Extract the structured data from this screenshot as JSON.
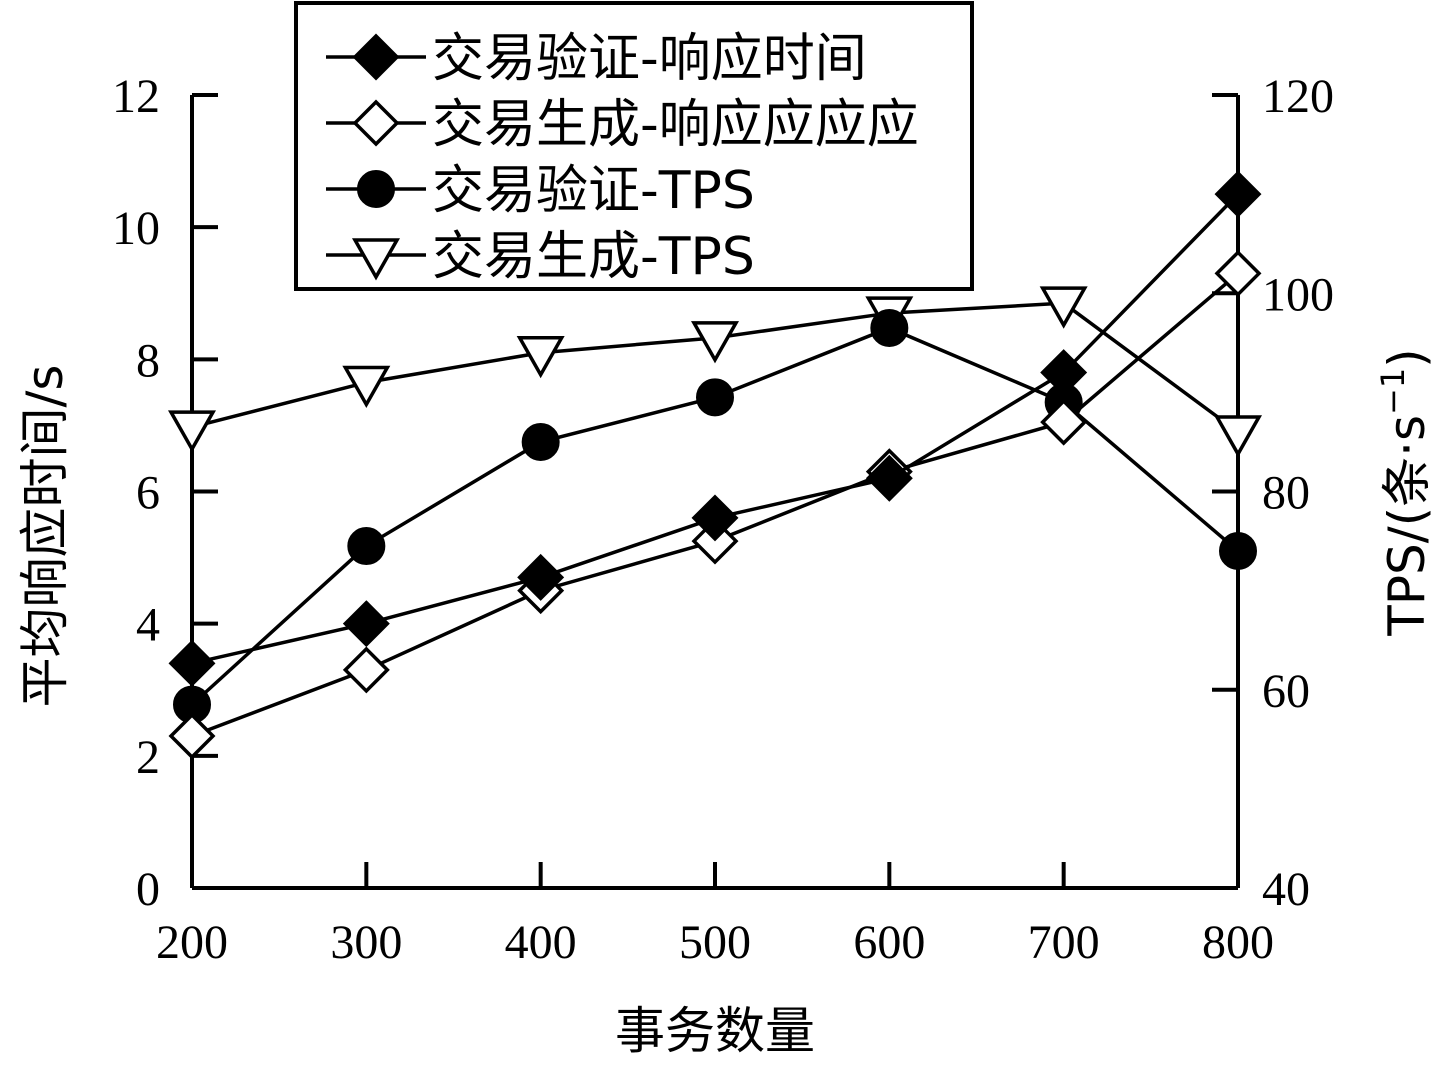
{
  "chart_data": {
    "type": "line",
    "xlabel": "事务数量",
    "ylabel_left": "平均响应时间/s",
    "ylabel_right": {
      "prefix": "TPS/(条·s",
      "superscript": "−1",
      "suffix": ")"
    },
    "x": [
      200,
      300,
      400,
      500,
      600,
      700,
      800
    ],
    "x_ticks": [
      "200",
      "300",
      "400",
      "500",
      "600",
      "700",
      "800"
    ],
    "xlim": [
      200,
      800
    ],
    "ylim_left": [
      0,
      12
    ],
    "y_ticks_left": [
      "0",
      "2",
      "4",
      "6",
      "8",
      "10",
      "12"
    ],
    "ylim_right": [
      40,
      120
    ],
    "y_ticks_right": [
      "40",
      "60",
      "80",
      "100",
      "120"
    ],
    "grid": false,
    "legend_position": "top-center",
    "series": [
      {
        "name": "交易验证-响应时间",
        "axis": "left",
        "marker": "diamond-filled",
        "values": [
          3.4,
          4.0,
          4.7,
          5.6,
          6.2,
          7.8,
          10.5
        ]
      },
      {
        "name": "交易生成-响应应应应",
        "axis": "left",
        "marker": "diamond-open",
        "values": [
          2.3,
          3.3,
          4.5,
          5.25,
          6.3,
          7.05,
          9.3
        ]
      },
      {
        "name": "交易验证-TPS",
        "axis": "right",
        "marker": "circle-filled",
        "values": [
          58.5,
          74.5,
          85,
          89.5,
          96.5,
          89,
          74
        ]
      },
      {
        "name": "交易生成-TPS",
        "axis": "right",
        "marker": "triangle-down-open",
        "values": [
          86.5,
          91,
          94,
          95.5,
          98,
          99,
          86
        ]
      }
    ]
  }
}
